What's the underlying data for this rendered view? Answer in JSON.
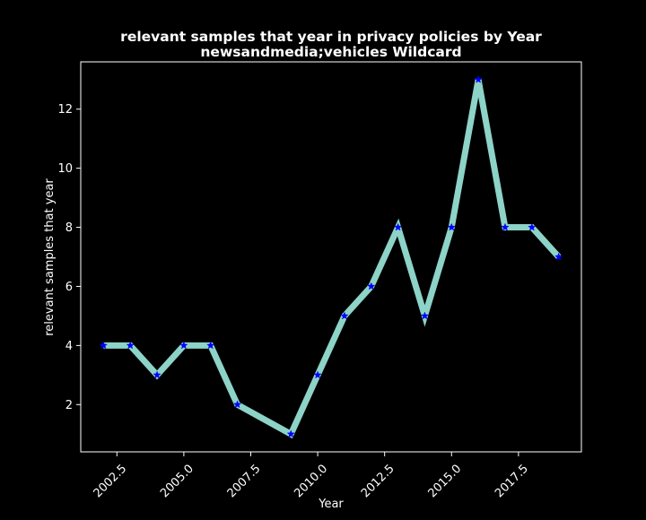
{
  "chart_data": {
    "type": "line",
    "title_line1": "relevant samples that year in privacy policies by Year",
    "title_line2": "newsandmedia;vehicles Wildcard",
    "xlabel": "Year",
    "ylabel": "relevant samples that year",
    "x": [
      2002,
      2003,
      2004,
      2005,
      2006,
      2007,
      2009,
      2010,
      2011,
      2012,
      2013,
      2014,
      2015,
      2016,
      2017,
      2018,
      2019
    ],
    "y": [
      4,
      4,
      3,
      4,
      4,
      2,
      1,
      3,
      5,
      6,
      8,
      5,
      8,
      13,
      8,
      8,
      7
    ],
    "xlim": [
      2001.15,
      2019.85
    ],
    "ylim": [
      0.4,
      13.6
    ],
    "xticks": [
      2002.5,
      2005.0,
      2007.5,
      2010.0,
      2012.5,
      2015.0,
      2017.5
    ],
    "xtick_labels": [
      "2002.5",
      "2005.0",
      "2007.5",
      "2010.0",
      "2012.5",
      "2015.0",
      "2017.5"
    ],
    "yticks": [
      2,
      4,
      6,
      8,
      10,
      12
    ],
    "ytick_labels": [
      "2",
      "4",
      "6",
      "8",
      "10",
      "12"
    ],
    "grid": false,
    "legend": "none",
    "colors": {
      "background": "#000000",
      "line": "#8dd3c7",
      "marker": "#0000ff",
      "axes": "#ffffff",
      "text": "#ffffff"
    },
    "marker": "star"
  }
}
